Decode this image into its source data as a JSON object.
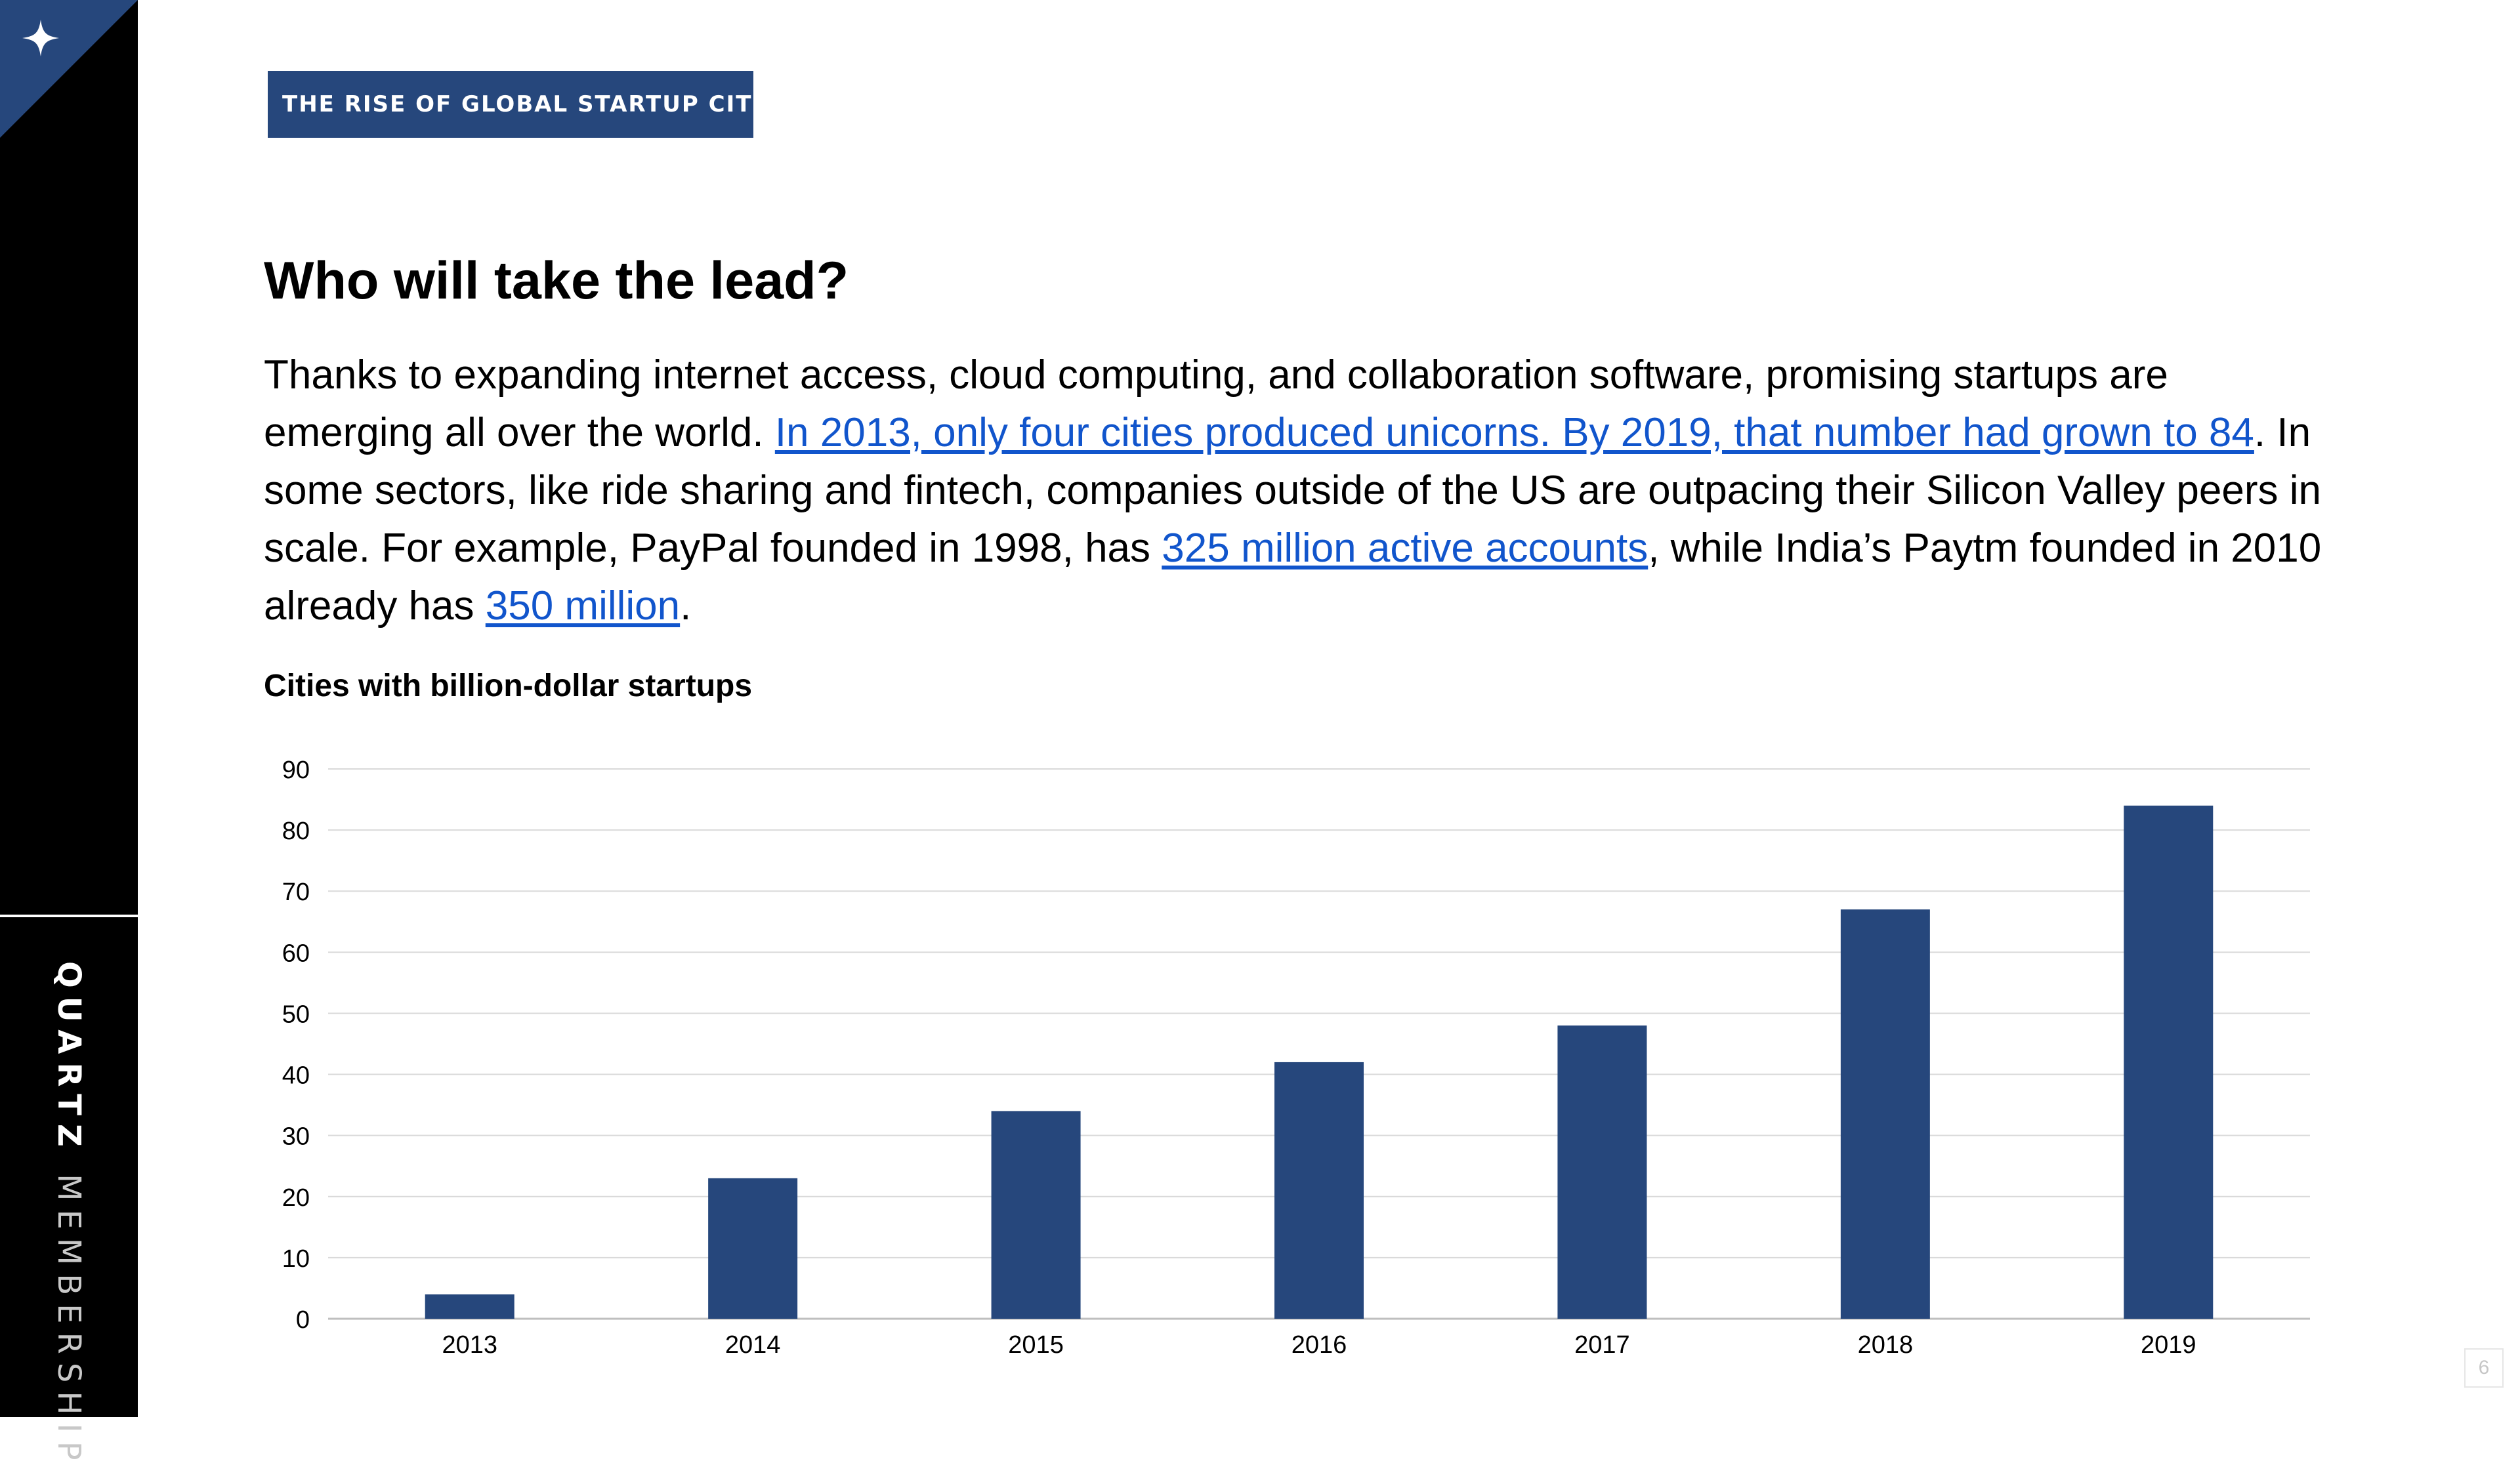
{
  "brand": {
    "name_bold": "QUARTZ",
    "name_regular": "MEMBERSHIP"
  },
  "section_tag": "THE RISE OF GLOBAL STARTUP CITIES",
  "headline": "Who will take the lead?",
  "body": {
    "p1": "Thanks to expanding internet access, cloud computing, and collaboration software, promising startups are emerging all over the world. ",
    "link1": "In 2013, only four cities produced unicorns. By 2019, that number had grown to 84",
    "p2": ". In some sectors, like ride sharing and fintech, companies outside of the US are outpacing their Silicon Valley peers in scale. For example, PayPal founded in 1998, has ",
    "link2": "325 million active accounts",
    "p3": ", while India’s Paytm founded in 2010 already has ",
    "link3": "350 million",
    "p4": "."
  },
  "chart_data": {
    "type": "bar",
    "title": "Cities with billion-dollar startups",
    "xlabel": "",
    "ylabel": "",
    "categories": [
      "2013",
      "2014",
      "2015",
      "2016",
      "2017",
      "2018",
      "2019"
    ],
    "values": [
      4,
      23,
      34,
      42,
      48,
      67,
      84
    ],
    "ylim": [
      0,
      90
    ],
    "yticks": [
      0,
      10,
      20,
      30,
      40,
      50,
      60,
      70,
      80,
      90
    ],
    "grid": true,
    "legend": "none",
    "bar_color": "#26477c"
  },
  "page_number": "6",
  "colors": {
    "accent": "#26477c",
    "link": "#1155cc",
    "sidebar": "#000000"
  }
}
